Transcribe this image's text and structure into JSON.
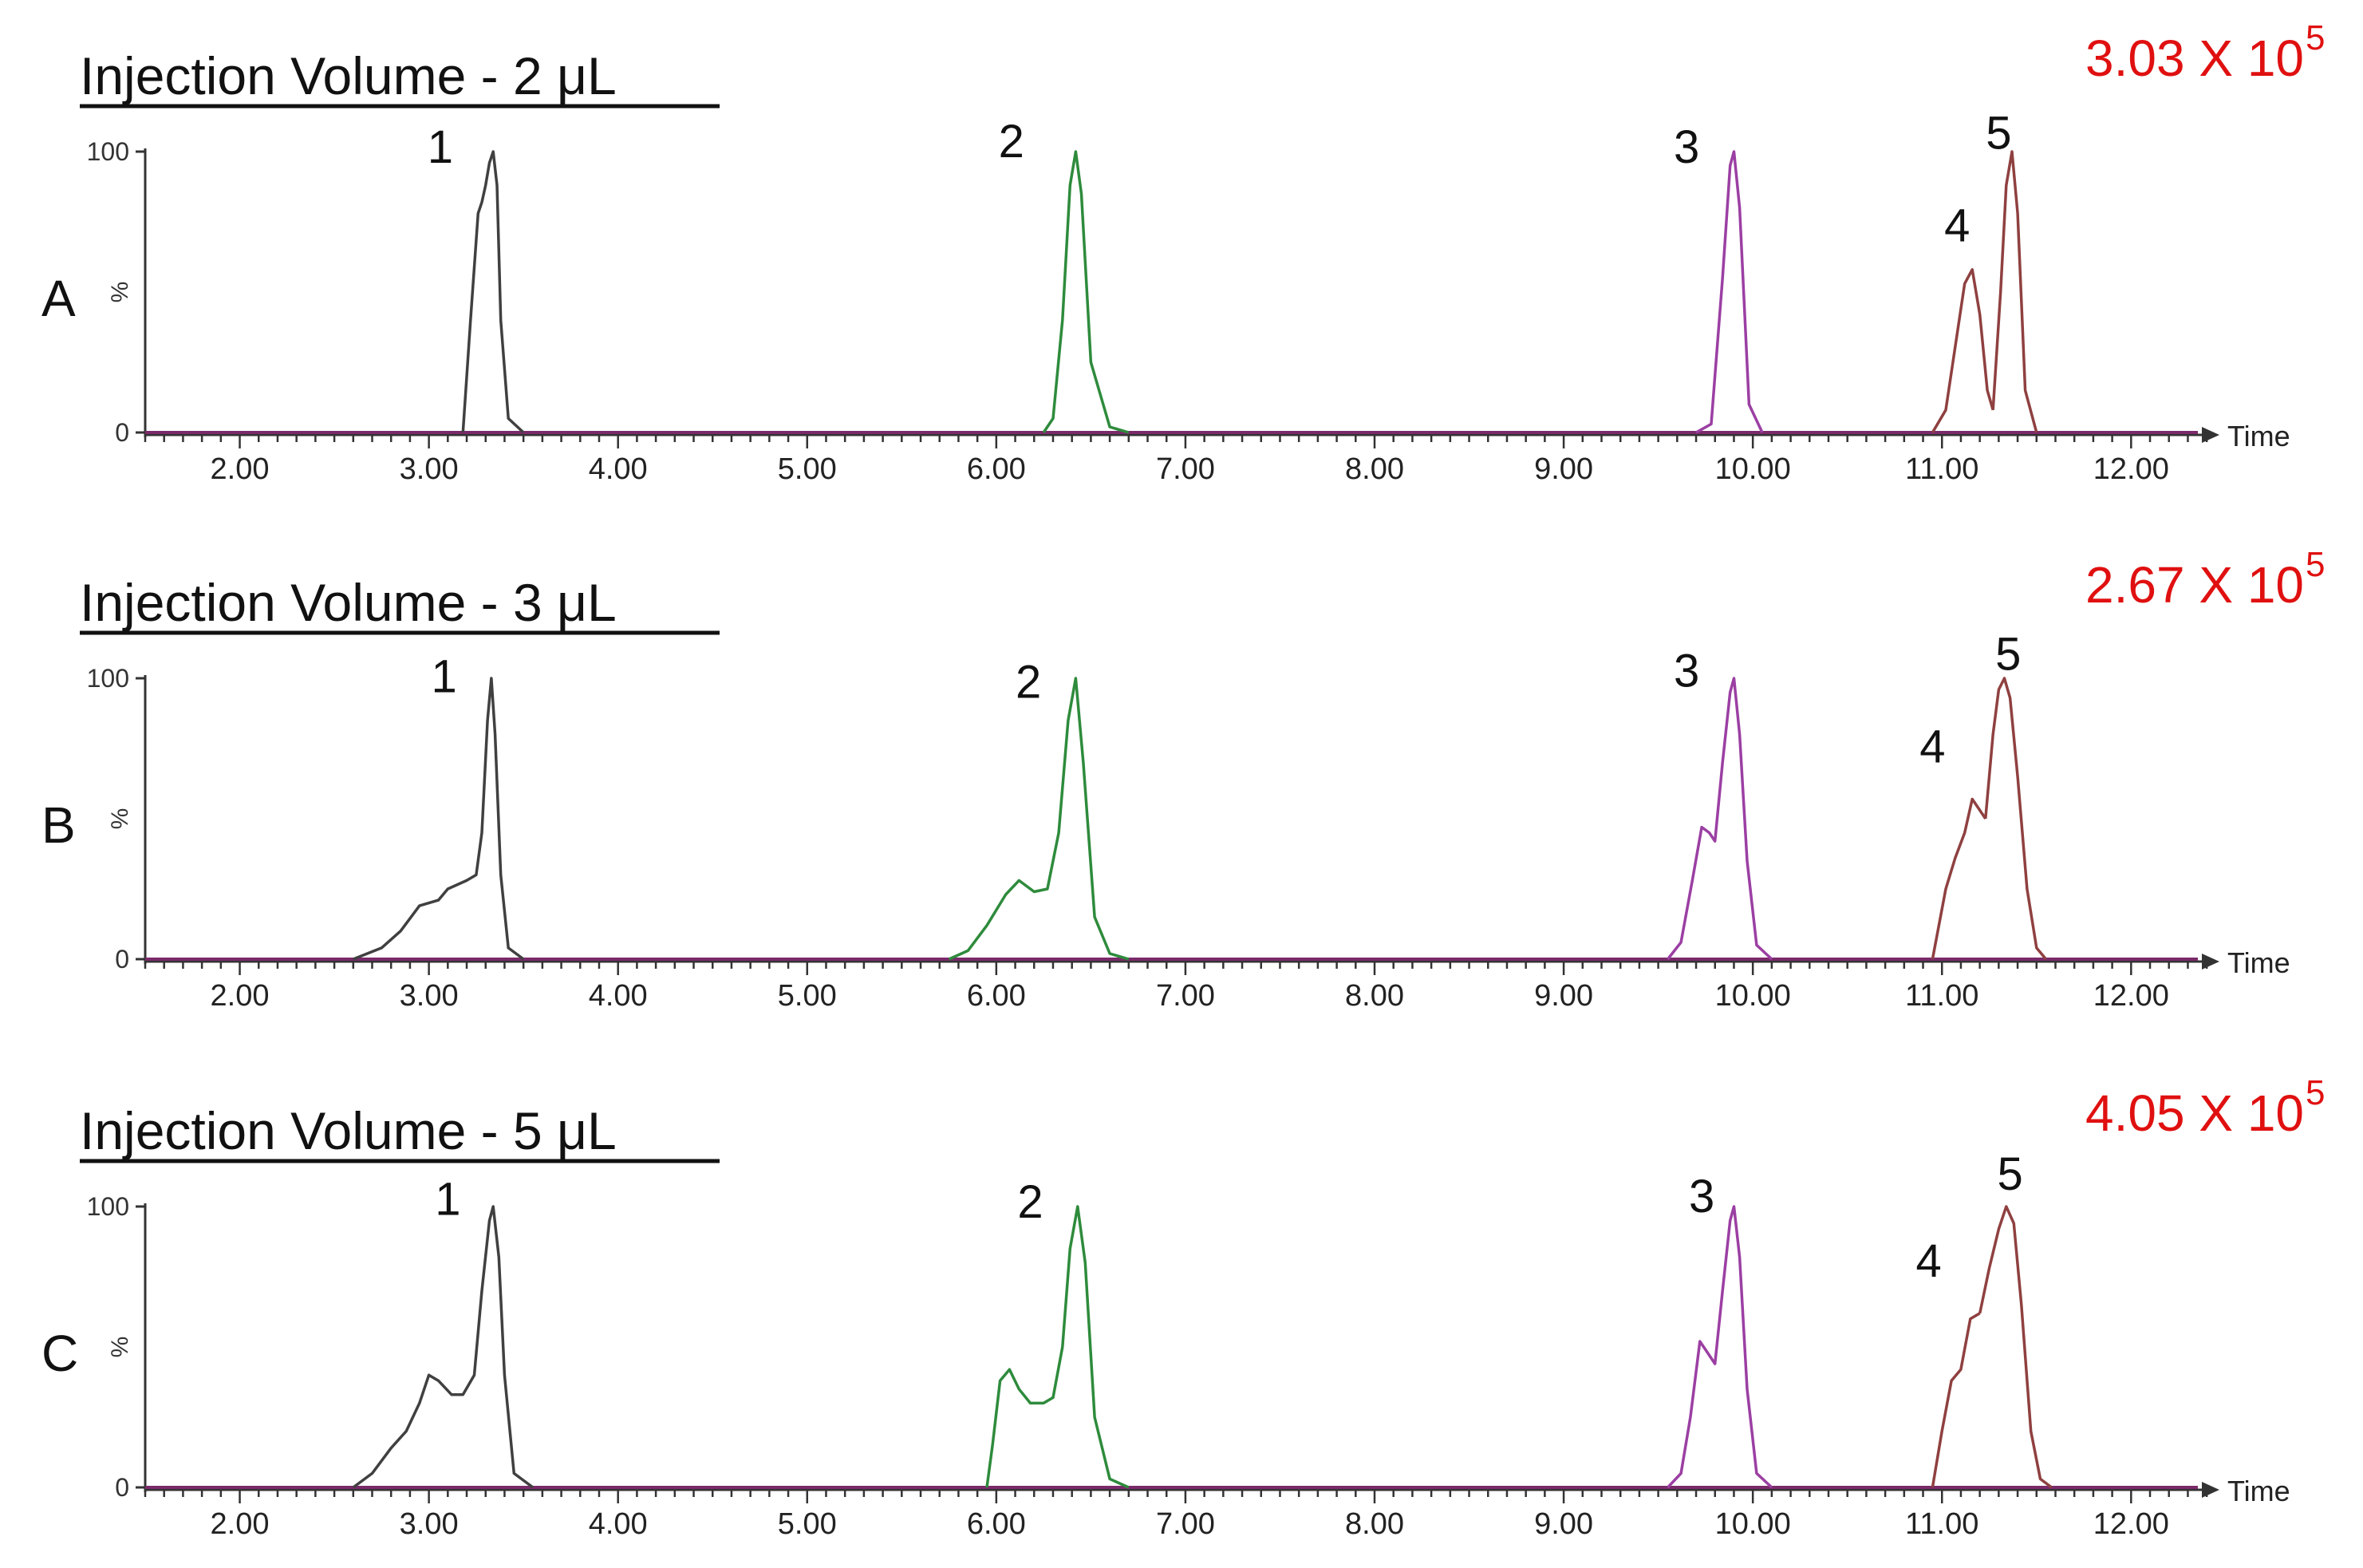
{
  "colors": {
    "peak1": "#404040",
    "peak2": "#2e8b3c",
    "peak3": "#9b3fa3",
    "peak4": "#8f4040",
    "peak5": "#8f4040",
    "axis": "#333333",
    "baseline": "#7a2a6a",
    "scale_label": "#e01010"
  },
  "chart_data": [
    {
      "type": "line",
      "panel_label": "A",
      "title": "Injection Volume - 2 μL",
      "scale_label": "3.03 X 10",
      "scale_exponent": "5",
      "xlabel": "Time",
      "ylabel": "%",
      "xlim": [
        1.5,
        12.45
      ],
      "ylim": [
        0,
        100
      ],
      "y_ticks": [
        "0",
        "100"
      ],
      "x_ticks": [
        "2.00",
        "3.00",
        "4.00",
        "5.00",
        "6.00",
        "7.00",
        "8.00",
        "9.00",
        "10.00",
        "11.00",
        "12.00"
      ],
      "peak_labels": [
        {
          "text": "1",
          "x": 3.06,
          "y": 96
        },
        {
          "text": "2",
          "x": 6.08,
          "y": 98
        },
        {
          "text": "3",
          "x": 9.65,
          "y": 96
        },
        {
          "text": "4",
          "x": 11.08,
          "y": 68
        },
        {
          "text": "5",
          "x": 11.3,
          "y": 101
        }
      ],
      "series": [
        {
          "name": "1",
          "color_key": "peak1",
          "x": [
            3.18,
            3.22,
            3.26,
            3.28,
            3.3,
            3.32,
            3.34,
            3.36,
            3.38,
            3.42,
            3.5
          ],
          "y": [
            0,
            40,
            78,
            82,
            88,
            96,
            100,
            88,
            40,
            5,
            0
          ]
        },
        {
          "name": "2",
          "color_key": "peak2",
          "x": [
            6.25,
            6.3,
            6.35,
            6.39,
            6.42,
            6.45,
            6.5,
            6.6,
            6.7
          ],
          "y": [
            0,
            5,
            40,
            88,
            100,
            85,
            25,
            2,
            0
          ]
        },
        {
          "name": "3",
          "color_key": "peak3",
          "x": [
            9.7,
            9.78,
            9.84,
            9.88,
            9.9,
            9.93,
            9.98,
            10.05
          ],
          "y": [
            0,
            3,
            55,
            95,
            100,
            80,
            10,
            0
          ]
        },
        {
          "name": "4",
          "color_key": "peak4",
          "x": [
            10.95,
            11.02,
            11.08,
            11.12,
            11.16,
            11.2,
            11.24,
            11.27
          ],
          "y": [
            0,
            8,
            35,
            53,
            58,
            42,
            15,
            8
          ]
        },
        {
          "name": "5",
          "color_key": "peak5",
          "x": [
            11.27,
            11.31,
            11.34,
            11.37,
            11.4,
            11.44,
            11.5
          ],
          "y": [
            8,
            50,
            88,
            100,
            78,
            15,
            0
          ]
        }
      ]
    },
    {
      "type": "line",
      "panel_label": "B",
      "title": "Injection Volume - 3 μL",
      "scale_label": "2.67 X 10",
      "scale_exponent": "5",
      "xlabel": "Time",
      "ylabel": "%",
      "xlim": [
        1.5,
        12.45
      ],
      "ylim": [
        0,
        100
      ],
      "y_ticks": [
        "0",
        "100"
      ],
      "x_ticks": [
        "2.00",
        "3.00",
        "4.00",
        "5.00",
        "6.00",
        "7.00",
        "8.00",
        "9.00",
        "10.00",
        "11.00",
        "12.00"
      ],
      "peak_labels": [
        {
          "text": "1",
          "x": 3.08,
          "y": 95
        },
        {
          "text": "2",
          "x": 6.17,
          "y": 93
        },
        {
          "text": "3",
          "x": 9.65,
          "y": 97
        },
        {
          "text": "4",
          "x": 10.95,
          "y": 70
        },
        {
          "text": "5",
          "x": 11.35,
          "y": 103
        }
      ],
      "series": [
        {
          "name": "1",
          "color_key": "peak1",
          "x": [
            2.6,
            2.75,
            2.85,
            2.95,
            3.0,
            3.05,
            3.1,
            3.2,
            3.25,
            3.28,
            3.31,
            3.33,
            3.35,
            3.38,
            3.42,
            3.5
          ],
          "y": [
            0,
            4,
            10,
            19,
            20,
            21,
            25,
            28,
            30,
            45,
            85,
            100,
            80,
            30,
            4,
            0
          ]
        },
        {
          "name": "2",
          "color_key": "peak2",
          "x": [
            5.75,
            5.85,
            5.95,
            6.05,
            6.12,
            6.2,
            6.27,
            6.33,
            6.38,
            6.42,
            6.46,
            6.52,
            6.6,
            6.7
          ],
          "y": [
            0,
            3,
            12,
            23,
            28,
            24,
            25,
            45,
            85,
            100,
            70,
            15,
            2,
            0
          ]
        },
        {
          "name": "3",
          "color_key": "peak3",
          "x": [
            9.55,
            9.62,
            9.68,
            9.73,
            9.77,
            9.8,
            9.84,
            9.88,
            9.9,
            9.93,
            9.97,
            10.02,
            10.1
          ],
          "y": [
            0,
            6,
            28,
            47,
            45,
            42,
            70,
            95,
            100,
            80,
            35,
            5,
            0
          ]
        },
        {
          "name": "4",
          "color_key": "peak4",
          "x": [
            10.95,
            11.02,
            11.07,
            11.12,
            11.16,
            11.2,
            11.23
          ],
          "y": [
            0,
            25,
            36,
            45,
            57,
            53,
            50
          ]
        },
        {
          "name": "5",
          "color_key": "peak5",
          "x": [
            11.23,
            11.27,
            11.3,
            11.33,
            11.36,
            11.4,
            11.45,
            11.5,
            11.55
          ],
          "y": [
            50,
            80,
            96,
            100,
            93,
            65,
            25,
            4,
            0
          ]
        }
      ]
    },
    {
      "type": "line",
      "panel_label": "C",
      "title": "Injection Volume - 5 μL",
      "scale_label": "4.05 X 10",
      "scale_exponent": "5",
      "xlabel": "Time",
      "ylabel": "%",
      "xlim": [
        1.5,
        12.45
      ],
      "ylim": [
        0,
        100
      ],
      "y_ticks": [
        "0",
        "100"
      ],
      "x_ticks": [
        "2.00",
        "3.00",
        "4.00",
        "5.00",
        "6.00",
        "7.00",
        "8.00",
        "9.00",
        "10.00",
        "11.00",
        "12.00"
      ],
      "peak_labels": [
        {
          "text": "1",
          "x": 3.1,
          "y": 97
        },
        {
          "text": "2",
          "x": 6.18,
          "y": 96
        },
        {
          "text": "3",
          "x": 9.73,
          "y": 98
        },
        {
          "text": "4",
          "x": 10.93,
          "y": 75
        },
        {
          "text": "5",
          "x": 11.36,
          "y": 106
        }
      ],
      "series": [
        {
          "name": "1",
          "color_key": "peak1",
          "x": [
            2.6,
            2.7,
            2.8,
            2.88,
            2.95,
            3.0,
            3.05,
            3.12,
            3.18,
            3.24,
            3.28,
            3.32,
            3.34,
            3.37,
            3.4,
            3.45,
            3.55
          ],
          "y": [
            0,
            5,
            14,
            20,
            30,
            40,
            38,
            33,
            33,
            40,
            70,
            95,
            100,
            82,
            40,
            5,
            0
          ]
        },
        {
          "name": "2",
          "color_key": "peak2",
          "x": [
            5.95,
            5.98,
            6.02,
            6.07,
            6.12,
            6.18,
            6.25,
            6.3,
            6.35,
            6.39,
            6.43,
            6.47,
            6.52,
            6.6,
            6.7
          ],
          "y": [
            0,
            15,
            38,
            42,
            35,
            30,
            30,
            32,
            50,
            85,
            100,
            80,
            25,
            3,
            0
          ]
        },
        {
          "name": "3",
          "color_key": "peak3",
          "x": [
            9.55,
            9.62,
            9.67,
            9.72,
            9.76,
            9.8,
            9.84,
            9.88,
            9.9,
            9.93,
            9.97,
            10.02,
            10.1
          ],
          "y": [
            0,
            5,
            25,
            52,
            48,
            44,
            70,
            95,
            100,
            82,
            35,
            5,
            0
          ]
        },
        {
          "name": "4",
          "color_key": "peak4",
          "x": [
            10.95,
            11.0,
            11.05,
            11.1,
            11.15,
            11.2
          ],
          "y": [
            0,
            20,
            38,
            42,
            60,
            62
          ]
        },
        {
          "name": "5",
          "color_key": "peak5",
          "x": [
            11.2,
            11.25,
            11.3,
            11.34,
            11.38,
            11.42,
            11.47,
            11.52,
            11.58
          ],
          "y": [
            62,
            78,
            92,
            100,
            94,
            65,
            20,
            3,
            0
          ]
        }
      ]
    }
  ]
}
